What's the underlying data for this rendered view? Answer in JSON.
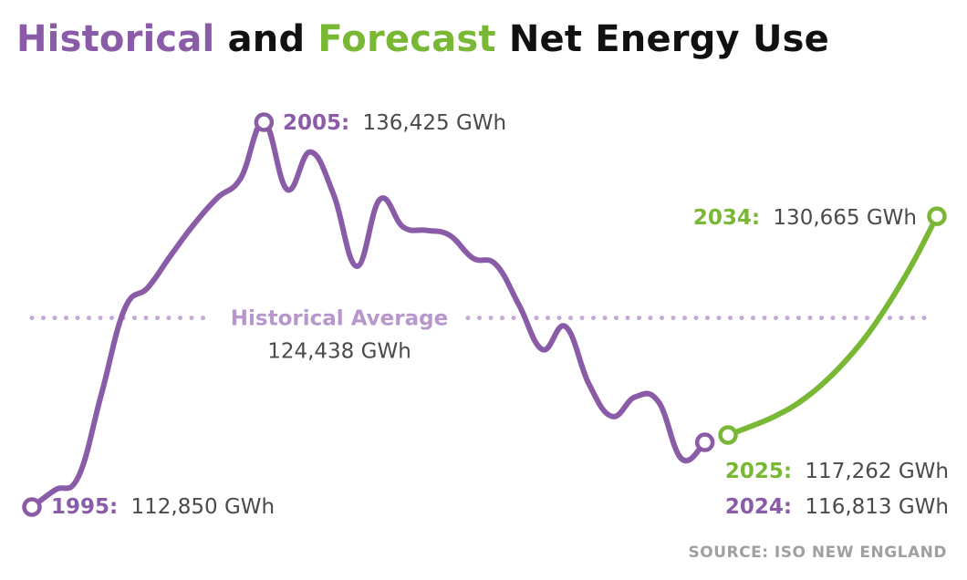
{
  "title": {
    "part1": "Historical",
    "part2": " and ",
    "part3": "Forecast",
    "part4": " Net Energy Use"
  },
  "colors": {
    "historical": "#8a5ca8",
    "forecast": "#79b834",
    "average_line": "#c4a9d4",
    "average_label": "#b797cc",
    "value_text": "#4a4a4a",
    "source_text": "#a0a0a0"
  },
  "chart_data": {
    "type": "line",
    "x_unit": "year",
    "y_unit": "GWh",
    "ylim": [
      111000,
      138000
    ],
    "xlim": [
      1995,
      2034
    ],
    "grid": false,
    "series": [
      {
        "name": "Historical",
        "x": [
          1995,
          1996,
          1997,
          1998,
          1999,
          2000,
          2001,
          2002,
          2003,
          2004,
          2005,
          2006,
          2007,
          2008,
          2009,
          2010,
          2011,
          2012,
          2013,
          2014,
          2015,
          2016,
          2017,
          2018,
          2019,
          2020,
          2021,
          2022,
          2023,
          2024
        ],
        "values": [
          112850,
          113900,
          114700,
          119800,
          125000,
          126300,
          128300,
          130200,
          131800,
          133000,
          136425,
          132300,
          134600,
          132000,
          127600,
          131700,
          130000,
          129800,
          129500,
          128100,
          127700,
          125200,
          122500,
          123900,
          120400,
          118400,
          119600,
          119300,
          115800,
          116813
        ]
      },
      {
        "name": "Forecast",
        "x": [
          2025,
          2026,
          2027,
          2028,
          2029,
          2030,
          2031,
          2032,
          2033,
          2034
        ],
        "values": [
          117262,
          117800,
          118400,
          119200,
          120300,
          121700,
          123400,
          125500,
          127900,
          130665
        ]
      }
    ],
    "reference_line": {
      "label": "Historical Average",
      "value": 124438,
      "value_text": "124,438 GWh"
    },
    "annotations": [
      {
        "year_text": "1995:",
        "value_text": "112,850 GWh",
        "series": "Historical"
      },
      {
        "year_text": "2005:",
        "value_text": "136,425 GWh",
        "series": "Historical"
      },
      {
        "year_text": "2024:",
        "value_text": "116,813 GWh",
        "series": "Historical"
      },
      {
        "year_text": "2025:",
        "value_text": "117,262 GWh",
        "series": "Forecast"
      },
      {
        "year_text": "2034:",
        "value_text": "130,665 GWh",
        "series": "Forecast"
      }
    ]
  },
  "source": "SOURCE: ISO NEW ENGLAND"
}
